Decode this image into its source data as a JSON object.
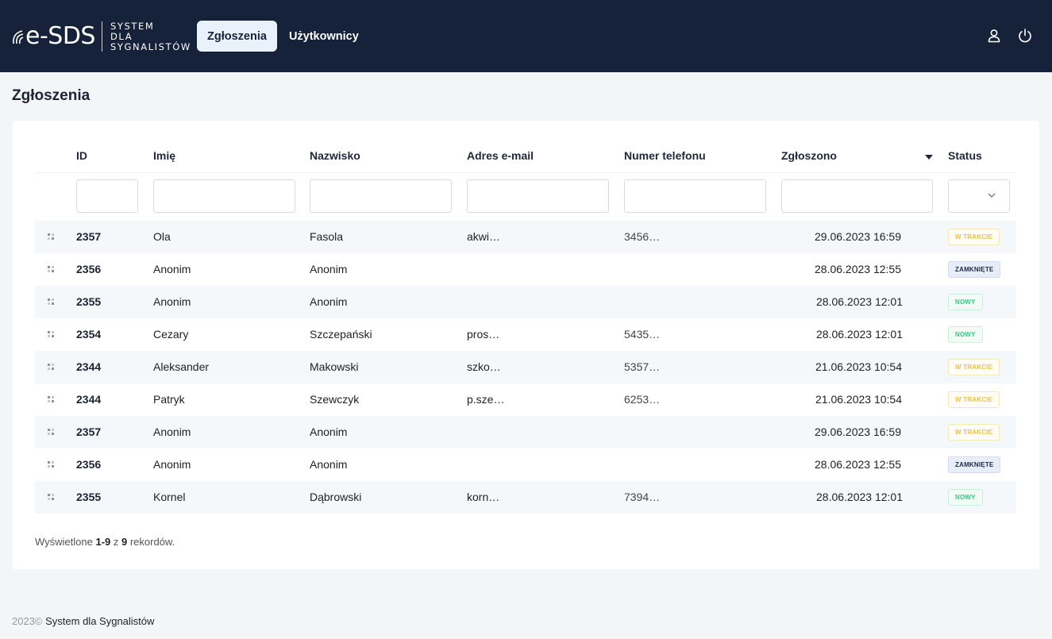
{
  "brand": {
    "logo_main": "e-SDS",
    "logo_sub_1": "SYSTEM",
    "logo_sub_2": "DLA",
    "logo_sub_3": "SYGNALISTÓW"
  },
  "nav": {
    "items": [
      {
        "label": "Zgłoszenia",
        "active": true
      },
      {
        "label": "Użytkownicy",
        "active": false
      }
    ]
  },
  "header_icons": [
    "user-icon",
    "power-icon"
  ],
  "page": {
    "title": "Zgłoszenia"
  },
  "table": {
    "columns": [
      "ID",
      "Imię",
      "Nazwisko",
      "Adres e-mail",
      "Numer telefonu",
      "Zgłoszono",
      "Status"
    ],
    "sorted_column": "Zgłoszono",
    "sort_direction": "descending",
    "rows": [
      {
        "id": "2357",
        "first": "Ola",
        "last": "Fasola",
        "email": "akwi…",
        "phone": "3456…",
        "date": "29.06.2023 16:59",
        "status": "W TRAKCIE",
        "status_color": "yellow"
      },
      {
        "id": "2356",
        "first": "Anonim",
        "last": "Anonim",
        "email": "",
        "phone": "",
        "date": "28.06.2023 12:55",
        "status": "ZAMKNIĘTE",
        "status_color": "navy"
      },
      {
        "id": "2355",
        "first": "Anonim",
        "last": "Anonim",
        "email": "",
        "phone": "",
        "date": "28.06.2023 12:01",
        "status": "NOWY",
        "status_color": "green"
      },
      {
        "id": "2354",
        "first": "Cezary",
        "last": "Szczepański",
        "email": "pros…",
        "phone": "5435…",
        "date": "28.06.2023 12:01",
        "status": "NOWY",
        "status_color": "green"
      },
      {
        "id": "2344",
        "first": "Aleksander",
        "last": "Makowski",
        "email": "szko…",
        "phone": "5357…",
        "date": "21.06.2023 10:54",
        "status": "W TRAKCIE",
        "status_color": "yellow"
      },
      {
        "id": "2344",
        "first": "Patryk",
        "last": "Szewczyk",
        "email": "p.sze…",
        "phone": "6253…",
        "date": "21.06.2023 10:54",
        "status": "W TRAKCIE",
        "status_color": "yellow"
      },
      {
        "id": "2357",
        "first": "Anonim",
        "last": "Anonim",
        "email": "",
        "phone": "",
        "date": "29.06.2023 16:59",
        "status": "W TRAKCIE",
        "status_color": "yellow"
      },
      {
        "id": "2356",
        "first": "Anonim",
        "last": "Anonim",
        "email": "",
        "phone": "",
        "date": "28.06.2023 12:55",
        "status": "ZAMKNIĘTE",
        "status_color": "navy"
      },
      {
        "id": "2355",
        "first": "Kornel",
        "last": "Dąbrowski",
        "email": "korn…",
        "phone": "7394…",
        "date": "28.06.2023 12:01",
        "status": "NOWY",
        "status_color": "green"
      }
    ]
  },
  "pagination": {
    "prefix": "Wyświetlone ",
    "range": "1-9",
    "mid": " z ",
    "total": "9",
    "suffix": " rekordów."
  },
  "footer": {
    "year": "2023©",
    "text": "System dla Sygnalistów"
  },
  "colors": {
    "header_bg": "#15223a",
    "active_tab_bg": "#e9f1fb",
    "status_yellow": "#f2c12e",
    "status_navy": "#1c2a4b",
    "status_green": "#38c785"
  }
}
